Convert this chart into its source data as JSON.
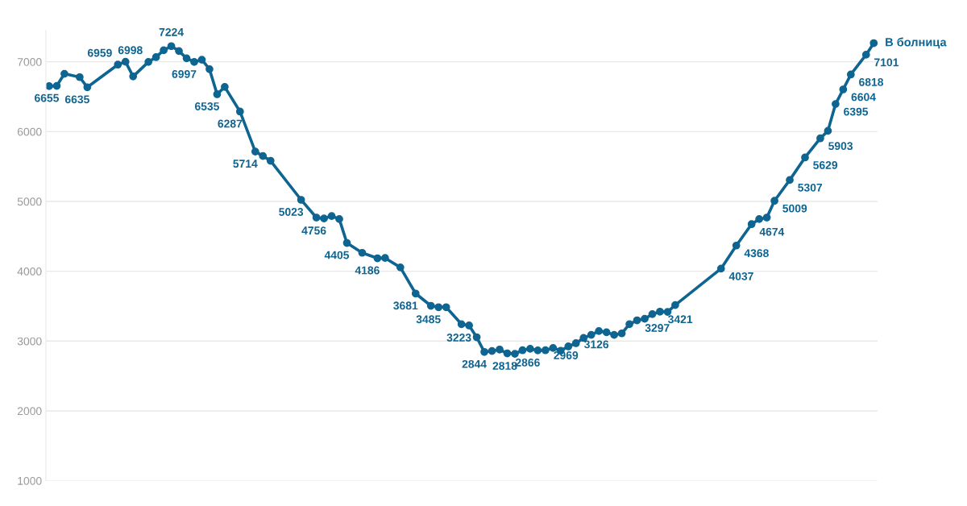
{
  "chart_data": {
    "type": "line",
    "categories": [
      null,
      null,
      null,
      null,
      null,
      null,
      null,
      null,
      null,
      null,
      null,
      null,
      null,
      null,
      null,
      null,
      null,
      null,
      null,
      null,
      null,
      null,
      null,
      null,
      null,
      null,
      null,
      null,
      null,
      null,
      null,
      null,
      null,
      null,
      null,
      null,
      null,
      null,
      null,
      null,
      null,
      null,
      null,
      null,
      null,
      null,
      null,
      null,
      null,
      null,
      null,
      null,
      null,
      null,
      null,
      null,
      null,
      null,
      null,
      null,
      null,
      null,
      null,
      null,
      null,
      null,
      null,
      null,
      null,
      null,
      null,
      null,
      null,
      null,
      null,
      null,
      null,
      null,
      null,
      null,
      null,
      null,
      null,
      null,
      null,
      null,
      null,
      null,
      null,
      null,
      null,
      null,
      null,
      null,
      null,
      null,
      null,
      null,
      null,
      null,
      null,
      null,
      null,
      null,
      null,
      null,
      null,
      null,
      null
    ],
    "series": [
      {
        "name": "В болница",
        "color": "#0f6591",
        "values": [
          6652,
          6655,
          6828,
          null,
          6780,
          6635,
          null,
          null,
          null,
          6959,
          7000,
          6790,
          null,
          6998,
          7066,
          7165,
          7224,
          7154,
          7050,
          6997,
          7030,
          6894,
          6535,
          6640,
          null,
          6287,
          null,
          5714,
          5650,
          5582,
          null,
          null,
          null,
          5023,
          null,
          4769,
          4756,
          4791,
          4747,
          4405,
          null,
          4264,
          null,
          4186,
          4190,
          null,
          4055,
          null,
          3681,
          null,
          3505,
          3485,
          3485,
          null,
          3242,
          3223,
          3055,
          2844,
          2857,
          2879,
          2824,
          2818,
          2868,
          2890,
          2866,
          2868,
          2901,
          2862,
          2923,
          2969,
          3044,
          3088,
          3143,
          3126,
          3088,
          3110,
          3242,
          3297,
          3319,
          3385,
          3421,
          3418,
          3516,
          null,
          null,
          null,
          null,
          null,
          4037,
          null,
          4368,
          null,
          4674,
          4747,
          4769,
          5009,
          null,
          5307,
          null,
          5629,
          null,
          5903,
          6011,
          6395,
          6604,
          6818,
          null,
          7101,
          7267
        ],
        "value_labels": [
          null,
          "6655",
          null,
          null,
          null,
          "6635",
          null,
          null,
          null,
          "6959",
          null,
          null,
          null,
          "6998",
          null,
          null,
          "7224",
          null,
          null,
          "6997",
          null,
          null,
          "6535",
          null,
          null,
          "6287",
          null,
          "5714",
          null,
          null,
          null,
          null,
          null,
          "5023",
          null,
          null,
          "4756",
          null,
          null,
          "4405",
          null,
          null,
          null,
          "4186",
          null,
          null,
          null,
          null,
          "3681",
          null,
          null,
          "3485",
          null,
          null,
          null,
          "3223",
          null,
          "2844",
          null,
          null,
          null,
          "2818",
          null,
          null,
          "2866",
          null,
          null,
          null,
          null,
          "2969",
          null,
          null,
          null,
          "3126",
          null,
          null,
          null,
          "3297",
          null,
          null,
          "3421",
          null,
          null,
          null,
          null,
          null,
          null,
          null,
          "4037",
          null,
          "4368",
          null,
          "4674",
          null,
          null,
          "5009",
          null,
          "5307",
          null,
          "5629",
          null,
          "5903",
          null,
          "6395",
          "6604",
          "6818",
          null,
          "7101",
          null
        ]
      }
    ],
    "ylim": [
      1000,
      7450
    ],
    "yticks": [
      1000,
      2000,
      3000,
      4000,
      5000,
      6000,
      7000
    ],
    "grid": "y",
    "legend": false,
    "marker": "circle",
    "line_style": "solid",
    "tick_labels": "y"
  }
}
